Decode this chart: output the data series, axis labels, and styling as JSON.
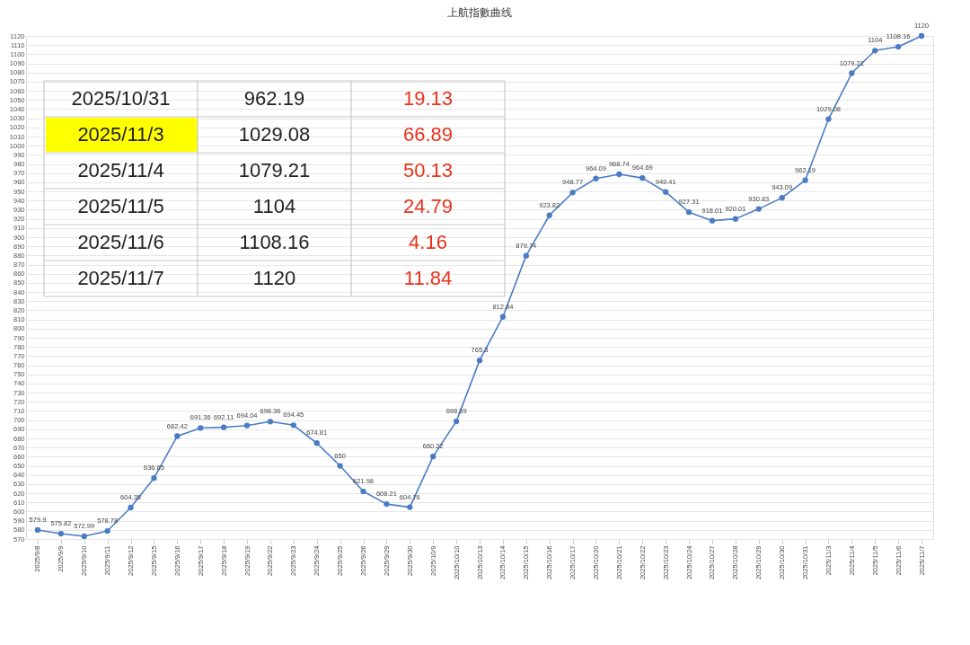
{
  "chart_data": {
    "type": "line",
    "title": "上航指數曲线",
    "categories": [
      "2025/9/8",
      "2025/9/9",
      "2025/9/10",
      "2025/9/11",
      "2025/9/12",
      "2025/9/15",
      "2025/9/16",
      "2025/9/17",
      "2025/9/18",
      "2025/9/19",
      "2025/9/22",
      "2025/9/23",
      "2025/9/24",
      "2025/9/25",
      "2025/9/26",
      "2025/9/29",
      "2025/9/30",
      "2025/10/9",
      "2025/10/10",
      "2025/10/13",
      "2025/10/14",
      "2025/10/15",
      "2025/10/16",
      "2025/10/17",
      "2025/10/20",
      "2025/10/21",
      "2025/10/22",
      "2025/10/23",
      "2025/10/24",
      "2025/10/27",
      "2025/10/28",
      "2025/10/29",
      "2025/10/30",
      "2025/10/31",
      "2025/11/3",
      "2025/11/4",
      "2025/11/5",
      "2025/11/6",
      "2025/11/7"
    ],
    "series": [
      {
        "color": "#4a7cc4",
        "values": [
          579.9,
          575.82,
          572.99,
          578.78,
          604.35,
          636.65,
          682.42,
          691.36,
          692.11,
          694.04,
          698.36,
          694.45,
          674.81,
          650,
          621.98,
          608.21,
          604.76,
          660.22,
          698.59,
          765.3,
          812.84,
          879.74,
          923.82,
          948.77,
          964.09,
          968.74,
          964.69,
          949.41,
          927.31,
          918.01,
          920.01,
          930.83,
          943.09,
          962.19,
          1029.08,
          1079.21,
          1104,
          1108.16,
          1120
        ]
      }
    ],
    "ylim": [
      570,
      1120
    ],
    "yticks": [
      570,
      580,
      590,
      600,
      610,
      620,
      630,
      640,
      650,
      660,
      670,
      680,
      690,
      700,
      710,
      720,
      730,
      740,
      750,
      760,
      770,
      780,
      790,
      800,
      810,
      820,
      830,
      840,
      850,
      860,
      870,
      880,
      890,
      900,
      910,
      920,
      930,
      940,
      950,
      960,
      970,
      980,
      990,
      1000,
      1010,
      1020,
      1030,
      1040,
      1050,
      1060,
      1070,
      1080,
      1090,
      1100,
      1110,
      1120
    ],
    "grid": "y",
    "marker": "circle",
    "line_style": "solid",
    "data_labels": true,
    "legend": false,
    "annotations": [
      "2025/10/31",
      "962.19",
      "19.13",
      "2025/11/3",
      "1029.08",
      "66.89",
      "2025/11/4",
      "1079.21",
      "50.13",
      "2025/11/5",
      "1104",
      "24.79",
      "2025/11/6",
      "1108.16",
      "4.16",
      "2025/11/7",
      "1120",
      "11.84"
    ]
  }
}
